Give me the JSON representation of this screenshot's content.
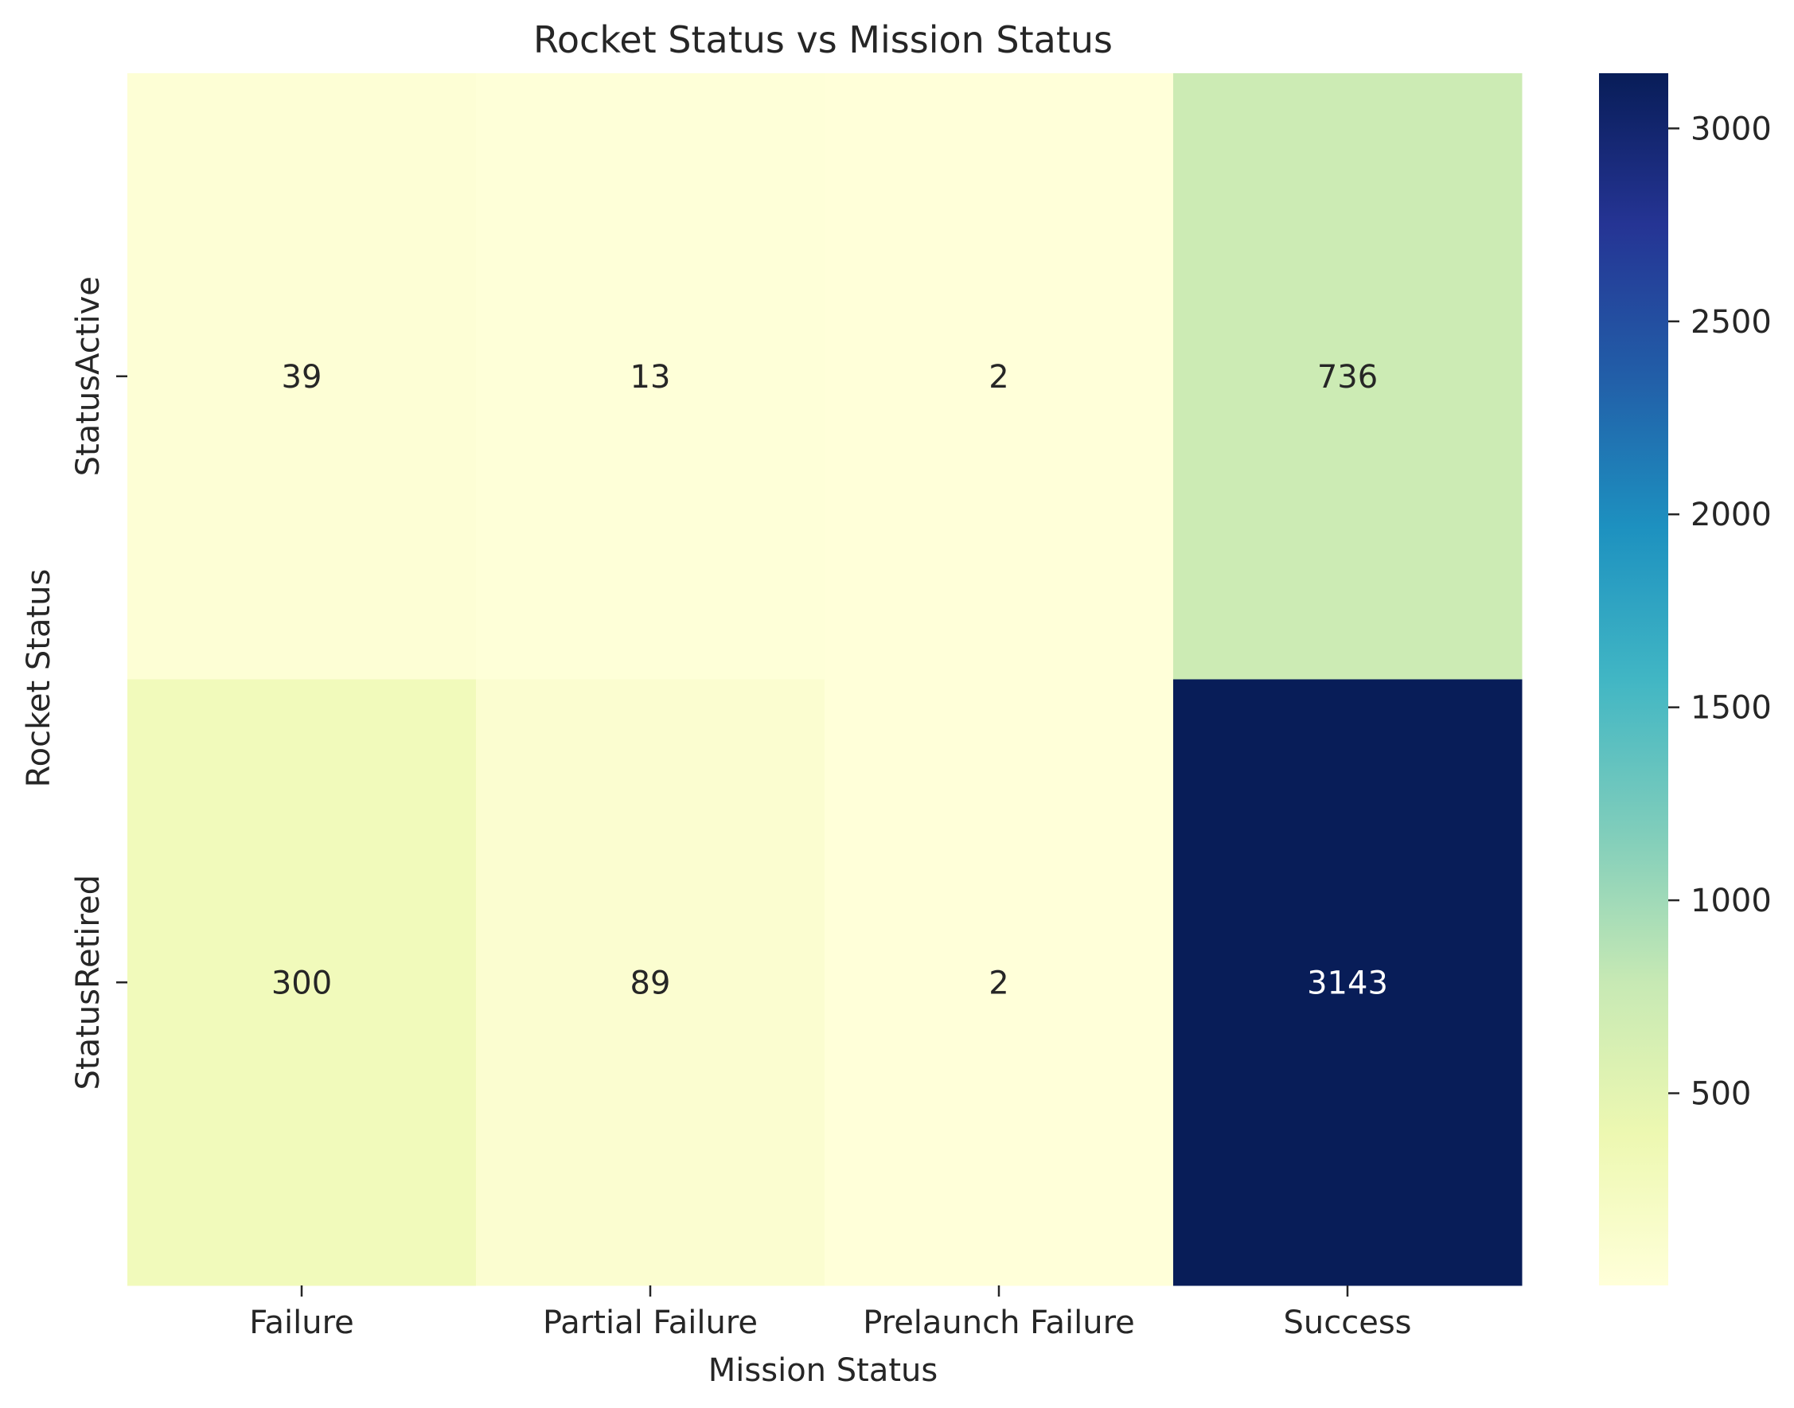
{
  "chart_data": {
    "type": "heatmap",
    "title": "Rocket Status vs Mission Status",
    "xlabel": "Mission Status",
    "ylabel": "Rocket Status",
    "x_categories": [
      "Failure",
      "Partial Failure",
      "Prelaunch Failure",
      "Success"
    ],
    "y_categories": [
      "StatusActive",
      "StatusRetired"
    ],
    "values": [
      [
        39,
        13,
        2,
        736
      ],
      [
        300,
        89,
        2,
        3143
      ]
    ],
    "colormap": "YlGnBu",
    "colorbar": {
      "range": [
        2,
        3143
      ],
      "ticks": [
        500,
        1000,
        1500,
        2000,
        2500,
        3000
      ]
    },
    "colors": {
      "ramp": [
        "#ffffd9",
        "#edf8b1",
        "#c7e9b4",
        "#7fcdbb",
        "#41b6c4",
        "#1d91c0",
        "#225ea8",
        "#253494",
        "#081d58"
      ]
    },
    "grid": false,
    "legend": "colorbar-right"
  }
}
